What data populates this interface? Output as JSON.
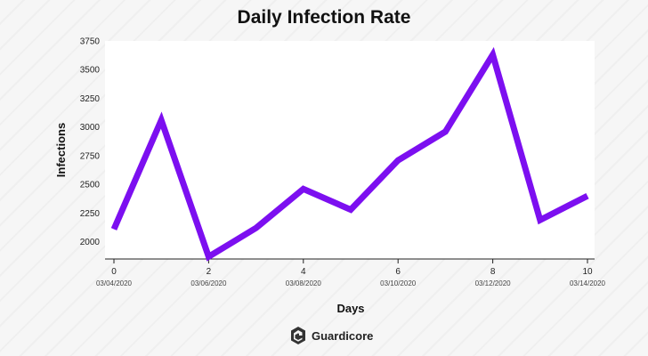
{
  "brand": {
    "name": "Guardicore"
  },
  "chart_data": {
    "type": "line",
    "title": "Daily Infection Rate",
    "xlabel": "Days",
    "ylabel": "Infections",
    "xlim": [
      0,
      10
    ],
    "ylim": [
      1850,
      3750
    ],
    "x": [
      0,
      1,
      2,
      3,
      4,
      5,
      6,
      7,
      8,
      9,
      10
    ],
    "series": [
      {
        "values": [
          2110,
          3060,
          1870,
          2120,
          2460,
          2280,
          2710,
          2960,
          3630,
          2190,
          2400
        ],
        "color": "#7c0ff0"
      }
    ],
    "xticks": [
      0,
      2,
      4,
      6,
      8,
      10
    ],
    "xtick_dates": [
      "03/04/2020",
      "03/06/2020",
      "03/08/2020",
      "03/10/2020",
      "03/12/2020",
      "03/14/2020"
    ],
    "yticks": [
      2000,
      2250,
      2500,
      2750,
      3000,
      3250,
      3500,
      3750
    ],
    "grid": false,
    "legend": "none"
  }
}
